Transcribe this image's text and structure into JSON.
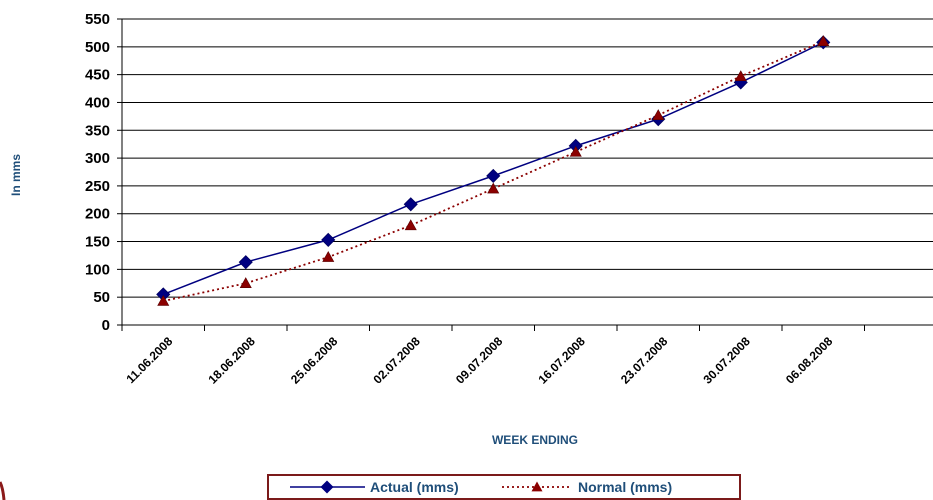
{
  "chart_data": {
    "type": "line",
    "categories": [
      "11.06.2008",
      "18.06.2008",
      "25.06.2008",
      "02.07.2008",
      "09.07.2008",
      "16.07.2008",
      "23.07.2008",
      "30.07.2008",
      "06.08.2008"
    ],
    "series": [
      {
        "name": "Actual (mms)",
        "values": [
          55,
          113,
          153,
          217,
          268,
          322,
          370,
          436,
          508
        ],
        "color": "#000080",
        "marker": "diamond",
        "line": "solid"
      },
      {
        "name": "Normal (mms)",
        "values": [
          43,
          75,
          122,
          179,
          245,
          311,
          377,
          447,
          510
        ],
        "color": "#8b0000",
        "marker": "triangle",
        "line": "dotted"
      }
    ],
    "title": "",
    "xlabel": "WEEK ENDING",
    "ylabel": "In mms",
    "ylim": [
      0,
      550
    ],
    "yticks": [
      0,
      50,
      100,
      150,
      200,
      250,
      300,
      350,
      400,
      450,
      500,
      550
    ],
    "grid": "horizontal",
    "legend_position": "bottom"
  }
}
